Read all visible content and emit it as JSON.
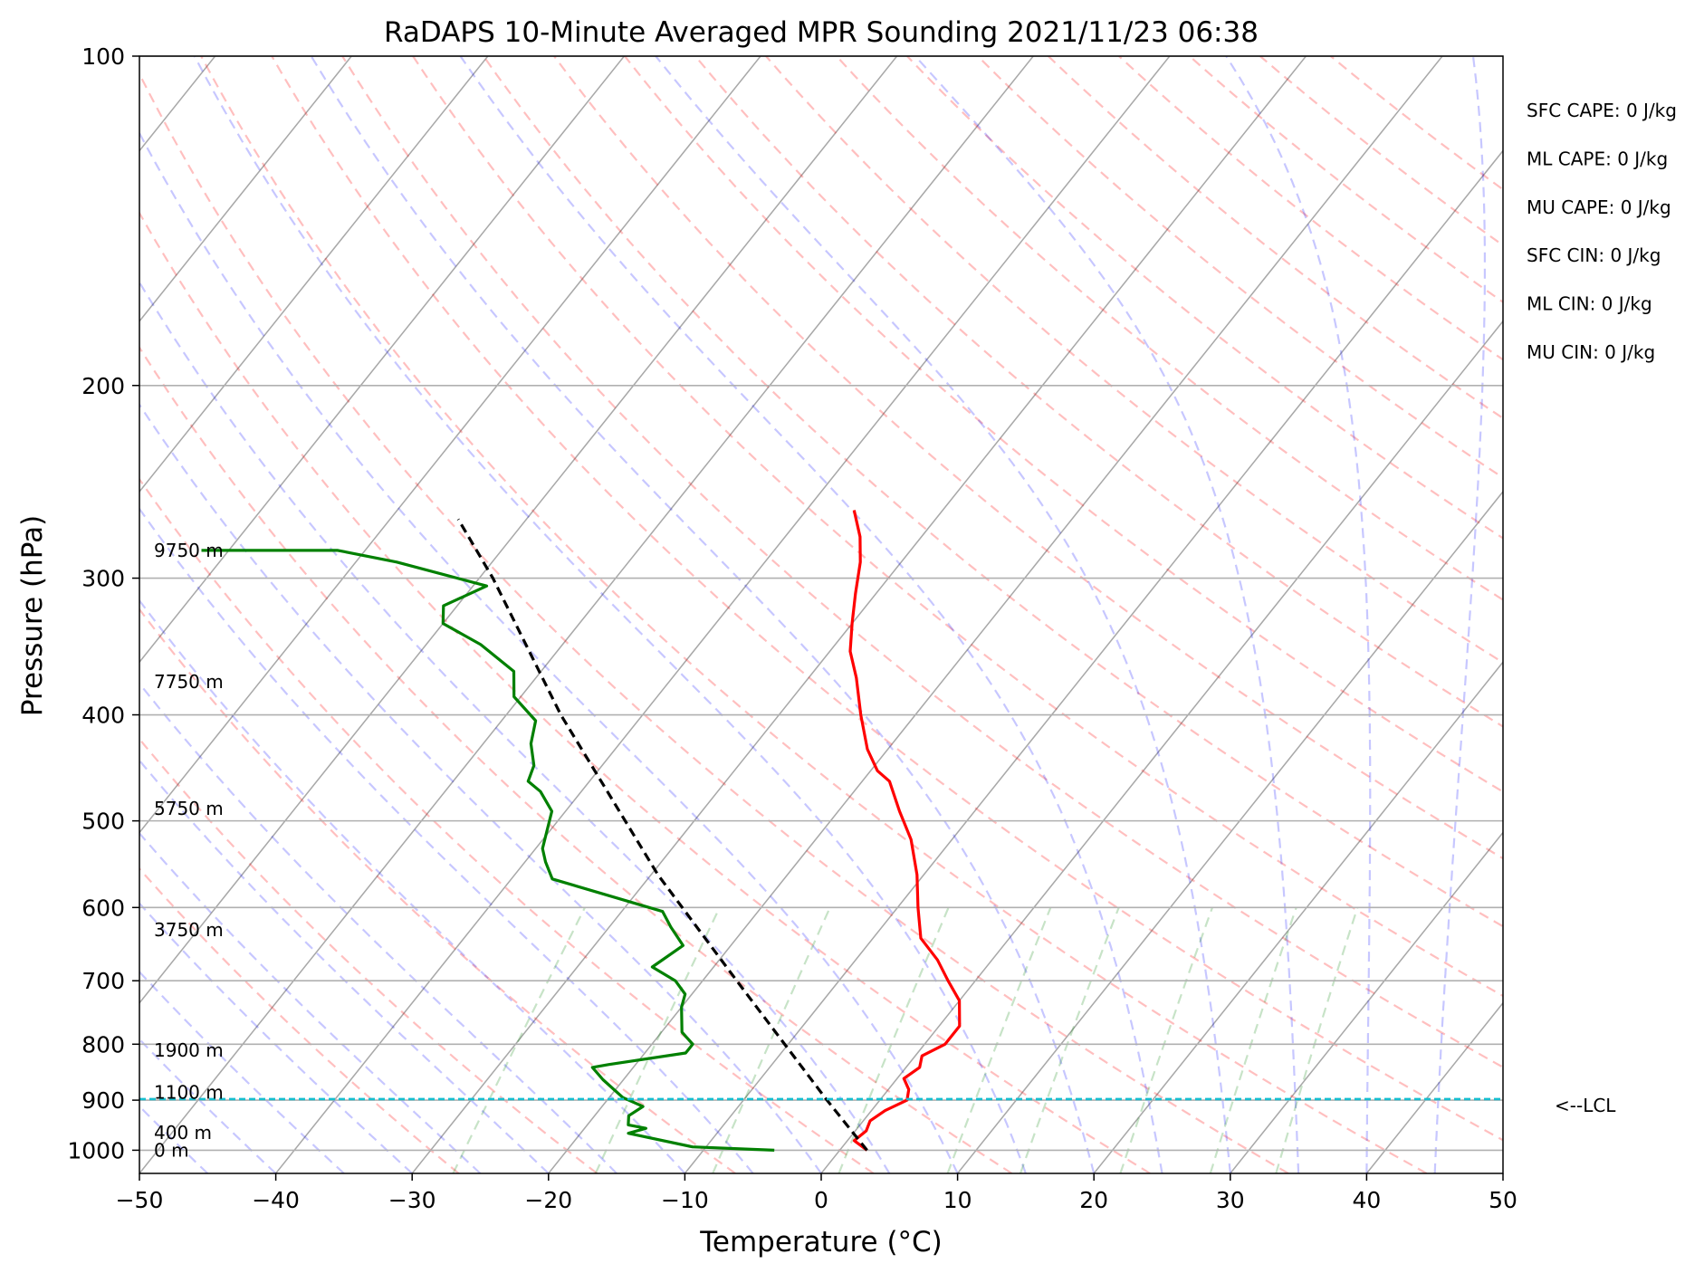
{
  "chart_data": {
    "type": "line",
    "title": "RaDAPS 10-Minute Averaged MPR Sounding 2021/11/23 06:38",
    "xlabel": "Temperature (°C)",
    "ylabel": "Pressure (hPa)",
    "xlim": [
      -50,
      50
    ],
    "ylim": [
      1050,
      100
    ],
    "y_scale": "log",
    "skew_t": true,
    "grid": true,
    "x_ticks": [
      -50,
      -40,
      -30,
      -20,
      -10,
      0,
      10,
      20,
      30,
      40,
      50
    ],
    "x_tick_labels": [
      "−50",
      "−40",
      "−30",
      "−20",
      "−10",
      "0",
      "10",
      "20",
      "30",
      "40",
      "50"
    ],
    "y_ticks": [
      100,
      200,
      300,
      400,
      500,
      600,
      700,
      800,
      900,
      1000
    ],
    "y_tick_labels": [
      "100",
      "200",
      "300",
      "400",
      "500",
      "600",
      "700",
      "800",
      "900",
      "1000"
    ],
    "height_labels": [
      {
        "text": "9750 m",
        "p": 283
      },
      {
        "text": "7750 m",
        "p": 373
      },
      {
        "text": "5750 m",
        "p": 487
      },
      {
        "text": "3750 m",
        "p": 629
      },
      {
        "text": "1900 m",
        "p": 810
      },
      {
        "text": "1100 m",
        "p": 885
      },
      {
        "text": "400 m",
        "p": 964
      },
      {
        "text": "0 m",
        "p": 1000
      }
    ],
    "stats": [
      "SFC CAPE: 0 J/kg",
      "ML CAPE: 0 J/kg",
      "MU CAPE: 0 J/kg",
      "SFC CIN: 0 J/kg",
      "ML CIN: 0 J/kg",
      "MU CIN: 0 J/kg"
    ],
    "lcl": {
      "label": "<--LCL",
      "p": 898,
      "color": "#17becf"
    },
    "series": [
      {
        "color": "#ff0000",
        "points": [
          [
            2.0,
            1000
          ],
          [
            0.5,
            980
          ],
          [
            0.8,
            960
          ],
          [
            0.5,
            940
          ],
          [
            1.0,
            920
          ],
          [
            2.0,
            900
          ],
          [
            1.5,
            880
          ],
          [
            0.5,
            860
          ],
          [
            1.0,
            840
          ],
          [
            0.5,
            820
          ],
          [
            1.5,
            800
          ],
          [
            1.5,
            770
          ],
          [
            0.0,
            730
          ],
          [
            -2.0,
            700
          ],
          [
            -4.0,
            670
          ],
          [
            -6.5,
            640
          ],
          [
            -8.5,
            600
          ],
          [
            -10.5,
            560
          ],
          [
            -13.0,
            520
          ],
          [
            -15.5,
            490
          ],
          [
            -18.0,
            460
          ],
          [
            -19.5,
            450
          ],
          [
            -21.5,
            430
          ],
          [
            -24.0,
            400
          ],
          [
            -26.5,
            370
          ],
          [
            -28.5,
            350
          ],
          [
            -30.0,
            330
          ],
          [
            -31.5,
            310
          ],
          [
            -33.0,
            290
          ],
          [
            -34.5,
            275
          ],
          [
            -36.5,
            260
          ]
        ]
      },
      {
        "color": "#008000",
        "points": [
          [
            -4.8,
            1000
          ],
          [
            -11.0,
            993
          ],
          [
            -16.5,
            965
          ],
          [
            -15.5,
            955
          ],
          [
            -17.0,
            948
          ],
          [
            -17.5,
            930
          ],
          [
            -17.0,
            912
          ],
          [
            -19.0,
            895
          ],
          [
            -21.5,
            862
          ],
          [
            -23.0,
            840
          ],
          [
            -22.0,
            835
          ],
          [
            -17.0,
            815
          ],
          [
            -17.0,
            800
          ],
          [
            -18.5,
            780
          ],
          [
            -20.0,
            740
          ],
          [
            -20.5,
            720
          ],
          [
            -22.0,
            700
          ],
          [
            -24.5,
            680
          ],
          [
            -23.5,
            650
          ],
          [
            -25.5,
            625
          ],
          [
            -27.0,
            605
          ],
          [
            -37.0,
            565
          ],
          [
            -38.5,
            545
          ],
          [
            -39.5,
            530
          ],
          [
            -41.0,
            490
          ],
          [
            -43.0,
            470
          ],
          [
            -44.5,
            460
          ],
          [
            -45.0,
            445
          ],
          [
            -46.5,
            425
          ],
          [
            -47.5,
            405
          ],
          [
            -50.5,
            385
          ],
          [
            -52.0,
            365
          ],
          [
            -56.0,
            345
          ],
          [
            -60.0,
            330
          ],
          [
            -61.0,
            318
          ],
          [
            -59.0,
            305
          ],
          [
            -67.0,
            290
          ],
          [
            -72.0,
            283
          ],
          [
            -82.0,
            283
          ]
        ]
      },
      {
        "color": "#000000",
        "dash": true,
        "points": [
          [
            2.0,
            1000
          ],
          [
            -4.0,
            898
          ],
          [
            -17.5,
            700
          ],
          [
            -29.5,
            560
          ],
          [
            -46.0,
            400
          ],
          [
            -59.0,
            300
          ],
          [
            -65.0,
            265
          ]
        ]
      }
    ]
  }
}
